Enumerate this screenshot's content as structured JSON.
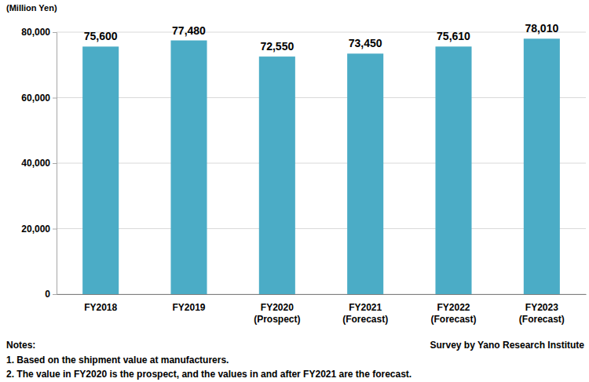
{
  "chart_data": {
    "type": "bar",
    "ylabel": "(Million Yen)",
    "categories": [
      "FY2018",
      "FY2019",
      "FY2020\n(Prospect)",
      "FY2021\n(Forecast)",
      "FY2022\n(Forecast)",
      "FY2023\n(Forecast)"
    ],
    "values": [
      75600,
      77480,
      72550,
      73450,
      75610,
      78010
    ],
    "value_labels": [
      "75,600",
      "77,480",
      "72,550",
      "73,450",
      "75,610",
      "78,010"
    ],
    "color": "#4bacc6",
    "ylim": [
      0,
      80000
    ],
    "yticks": [
      0,
      {
        "value": 20000,
        "label": "20,000"
      },
      {
        "value": 40000,
        "label": "40,000"
      },
      {
        "value": 60000,
        "label": "60,000"
      },
      {
        "value": 80000,
        "label": "80,000"
      }
    ],
    "grid": true,
    "data_labels": true,
    "annotations": [
      "Notes:",
      "1. Based on the shipment value at manufacturers.",
      "2. The value in FY2020 is the prospect, and the values in and after FY2021 are the forecast."
    ],
    "source": "Survey by Yano Research Institute"
  }
}
